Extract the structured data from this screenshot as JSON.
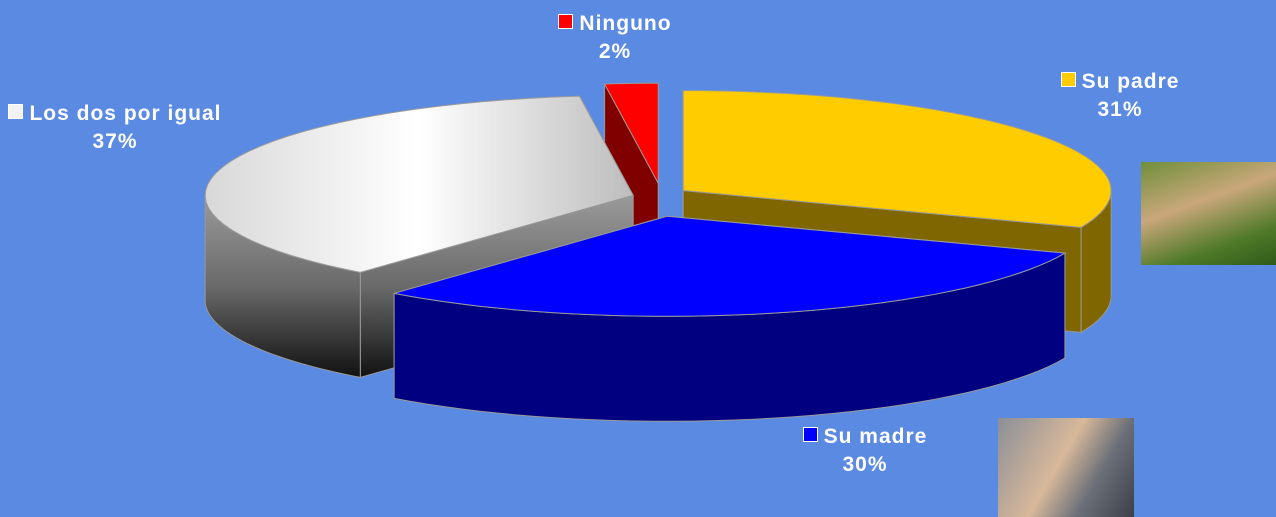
{
  "chart_data": {
    "type": "pie3d",
    "categories": [
      "Su padre",
      "Su madre",
      "Los dos por igual",
      "Ninguno"
    ],
    "values": [
      31,
      30,
      37,
      2
    ],
    "value_labels": [
      "31%",
      "30%",
      "37%",
      "2%"
    ],
    "colors": [
      "#FFCC00",
      "#0000FF",
      "#F2F2F2",
      "#FF0000"
    ]
  }
}
